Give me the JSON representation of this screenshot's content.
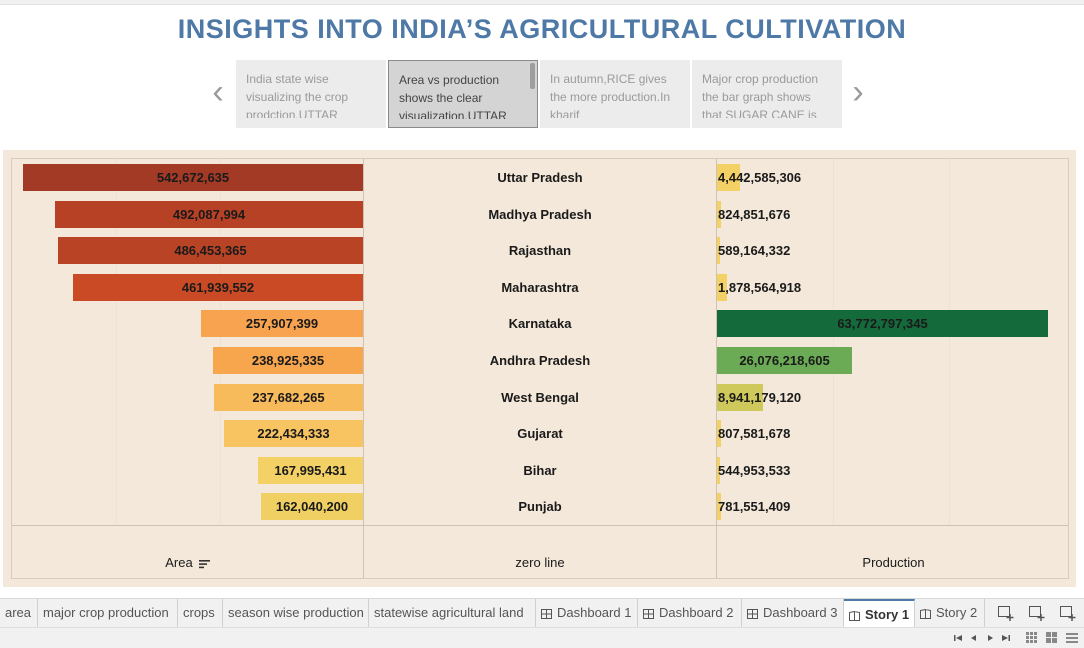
{
  "title": "INSIGHTS INTO INDIA’S AGRICULTURAL CULTIVATION",
  "story_points": [
    {
      "text": "India state wise visualizing the crop prodction.UTTAR",
      "active": false
    },
    {
      "text": "Area vs production shows the clear visualization.UTTAR",
      "active": true
    },
    {
      "text": "In autumn,RICE gives the more production.In kharif",
      "active": false
    },
    {
      "text": "Major crop production the bar graph shows that SUGAR CANE is",
      "active": false
    }
  ],
  "axes": {
    "left": "Area",
    "center": "zero line",
    "right": "Production"
  },
  "chart_data": {
    "type": "bar",
    "categories": [
      "Uttar Pradesh",
      "Madhya Pradesh",
      "Rajasthan",
      "Maharashtra",
      "Karnataka",
      "Andhra Pradesh",
      "West Bengal",
      "Gujarat",
      "Bihar",
      "Punjab"
    ],
    "series": [
      {
        "name": "Area",
        "values": [
          542672635,
          492087994,
          486453365,
          461939552,
          257907399,
          238925335,
          237682265,
          222434333,
          167995431,
          162040200
        ],
        "labels": [
          "542,672,635",
          "492,087,994",
          "486,453,365",
          "461,939,552",
          "257,907,399",
          "238,925,335",
          "237,682,265",
          "222,434,333",
          "167,995,431",
          "162,040,200"
        ],
        "colors": [
          "#a33a26",
          "#b74125",
          "#b94425",
          "#c94a24",
          "#f7a350",
          "#f7a64e",
          "#f8bb5c",
          "#f8c462",
          "#f3d165",
          "#f0d062"
        ]
      },
      {
        "name": "Production",
        "values": [
          4442585306,
          824851676,
          589164332,
          1878564918,
          63772797345,
          26076218605,
          8941179120,
          807581678,
          544953533,
          781551409
        ],
        "labels": [
          "4,442,585,306",
          "824,851,676",
          "589,164,332",
          "1,878,564,918",
          "63,772,797,345",
          "26,076,218,605",
          "8,941,179,120",
          "807,581,678",
          "544,953,533",
          "781,551,409"
        ],
        "colors": [
          "#f3d165",
          "#f3d165",
          "#f3d165",
          "#f3d165",
          "#156a3c",
          "#6bab55",
          "#cfc95b",
          "#f3d165",
          "#f3d165",
          "#f3d165"
        ]
      }
    ],
    "xlim_area": [
      0,
      560000000
    ],
    "xlim_production": [
      0,
      64500000000
    ],
    "grid": true
  },
  "tabs": [
    {
      "label": "area",
      "icon": "none"
    },
    {
      "label": "major crop production",
      "icon": "none"
    },
    {
      "label": "crops",
      "icon": "none"
    },
    {
      "label": "season wise production",
      "icon": "none"
    },
    {
      "label": "statewise agricultural land",
      "icon": "none"
    },
    {
      "label": "Dashboard 1",
      "icon": "dashboard-icon"
    },
    {
      "label": "Dashboard 2",
      "icon": "dashboard-icon"
    },
    {
      "label": "Dashboard 3",
      "icon": "dashboard-icon"
    },
    {
      "label": "Story 1",
      "icon": "story-icon",
      "active": true
    },
    {
      "label": "Story 2",
      "icon": "story-icon"
    }
  ]
}
